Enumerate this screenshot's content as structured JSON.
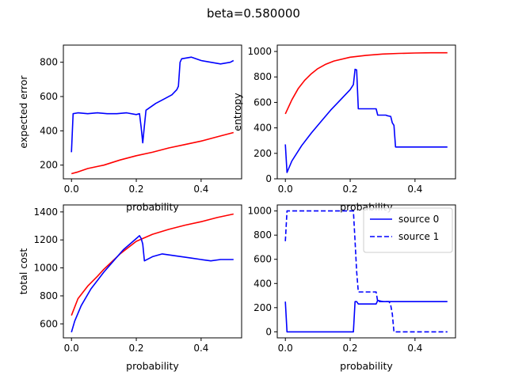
{
  "figure": {
    "title": "beta=0.580000"
  },
  "chart_data": [
    {
      "type": "line",
      "xlabel": "probability",
      "ylabel": "expected error",
      "xlim": [
        -0.025,
        0.525
      ],
      "ylim": [
        120,
        900
      ],
      "xticks": [
        "0.0",
        "0.2",
        "0.4"
      ],
      "yticks": [
        "200",
        "400",
        "600",
        "800"
      ],
      "series": [
        {
          "color": "#0000ff",
          "style": "solid",
          "x": [
            0.0,
            0.005,
            0.02,
            0.05,
            0.08,
            0.11,
            0.14,
            0.17,
            0.2,
            0.21,
            0.215,
            0.22,
            0.225,
            0.23,
            0.26,
            0.29,
            0.31,
            0.325,
            0.33,
            0.335,
            0.34,
            0.37,
            0.4,
            0.43,
            0.46,
            0.49,
            0.5
          ],
          "y": [
            275,
            500,
            505,
            500,
            505,
            500,
            500,
            505,
            495,
            500,
            420,
            330,
            430,
            520,
            560,
            590,
            610,
            640,
            660,
            800,
            820,
            830,
            810,
            800,
            790,
            800,
            810
          ]
        },
        {
          "color": "#ff0000",
          "style": "solid",
          "x": [
            0.0,
            0.02,
            0.05,
            0.1,
            0.15,
            0.2,
            0.25,
            0.3,
            0.35,
            0.4,
            0.45,
            0.5
          ],
          "y": [
            150,
            160,
            180,
            200,
            230,
            255,
            275,
            300,
            320,
            340,
            365,
            390
          ]
        }
      ]
    },
    {
      "type": "line",
      "xlabel": "probability",
      "ylabel": "entropy",
      "xlim": [
        -0.025,
        0.525
      ],
      "ylim": [
        0,
        1050
      ],
      "xticks": [
        "0.0",
        "0.2",
        "0.4"
      ],
      "yticks": [
        "0",
        "200",
        "400",
        "600",
        "800",
        "1000"
      ],
      "series": [
        {
          "color": "#ff0000",
          "style": "solid",
          "x": [
            0.0,
            0.02,
            0.04,
            0.06,
            0.08,
            0.1,
            0.125,
            0.15,
            0.2,
            0.25,
            0.3,
            0.35,
            0.4,
            0.45,
            0.5
          ],
          "y": [
            510,
            620,
            710,
            775,
            825,
            865,
            900,
            925,
            955,
            970,
            980,
            985,
            988,
            990,
            990
          ]
        },
        {
          "color": "#0000ff",
          "style": "solid",
          "x": [
            0.0,
            0.005,
            0.02,
            0.05,
            0.08,
            0.11,
            0.14,
            0.17,
            0.2,
            0.21,
            0.215,
            0.22,
            0.225,
            0.28,
            0.285,
            0.31,
            0.315,
            0.325,
            0.33,
            0.335,
            0.34,
            0.4,
            0.45,
            0.5
          ],
          "y": [
            270,
            50,
            140,
            260,
            360,
            450,
            540,
            620,
            700,
            740,
            860,
            855,
            550,
            550,
            500,
            500,
            495,
            490,
            440,
            420,
            250,
            250,
            250,
            250
          ]
        }
      ]
    },
    {
      "type": "line",
      "xlabel": "probability",
      "ylabel": "total cost",
      "xlim": [
        -0.025,
        0.525
      ],
      "ylim": [
        500,
        1450
      ],
      "xticks": [
        "0.0",
        "0.2",
        "0.4"
      ],
      "yticks": [
        "600",
        "800",
        "1000",
        "1200",
        "1400"
      ],
      "series": [
        {
          "color": "#ff0000",
          "style": "solid",
          "x": [
            0.0,
            0.02,
            0.05,
            0.08,
            0.1,
            0.15,
            0.2,
            0.25,
            0.3,
            0.35,
            0.4,
            0.45,
            0.5
          ],
          "y": [
            660,
            780,
            870,
            940,
            990,
            1100,
            1190,
            1240,
            1275,
            1305,
            1330,
            1360,
            1385
          ]
        },
        {
          "color": "#0000ff",
          "style": "solid",
          "x": [
            0.0,
            0.01,
            0.03,
            0.06,
            0.1,
            0.13,
            0.16,
            0.19,
            0.21,
            0.215,
            0.22,
            0.225,
            0.25,
            0.28,
            0.31,
            0.34,
            0.37,
            0.4,
            0.43,
            0.46,
            0.5
          ],
          "y": [
            540,
            620,
            730,
            850,
            970,
            1050,
            1130,
            1190,
            1230,
            1210,
            1170,
            1050,
            1080,
            1100,
            1090,
            1080,
            1070,
            1060,
            1050,
            1060,
            1060
          ]
        }
      ]
    },
    {
      "type": "line",
      "xlabel": "probability",
      "ylabel": "",
      "xlim": [
        -0.025,
        0.525
      ],
      "ylim": [
        -50,
        1050
      ],
      "xticks": [
        "0.0",
        "0.2",
        "0.4"
      ],
      "yticks": [
        "0",
        "200",
        "400",
        "600",
        "800",
        "1000"
      ],
      "legend": {
        "placement": "upper right"
      },
      "series": [
        {
          "name": "source 0",
          "color": "#0000ff",
          "style": "solid",
          "x": [
            0.0,
            0.005,
            0.2,
            0.21,
            0.215,
            0.22,
            0.225,
            0.26,
            0.28,
            0.285,
            0.3,
            0.4,
            0.5
          ],
          "y": [
            250,
            0,
            0,
            0,
            250,
            250,
            230,
            230,
            230,
            260,
            250,
            250,
            250
          ]
        },
        {
          "name": "source 1",
          "color": "#0000ff",
          "style": "dashed",
          "x": [
            0.0,
            0.005,
            0.2,
            0.21,
            0.215,
            0.22,
            0.225,
            0.28,
            0.285,
            0.32,
            0.325,
            0.33,
            0.335,
            0.4,
            0.5
          ],
          "y": [
            750,
            1000,
            1000,
            1000,
            750,
            500,
            330,
            330,
            250,
            250,
            220,
            150,
            0,
            0,
            0
          ]
        }
      ]
    }
  ]
}
